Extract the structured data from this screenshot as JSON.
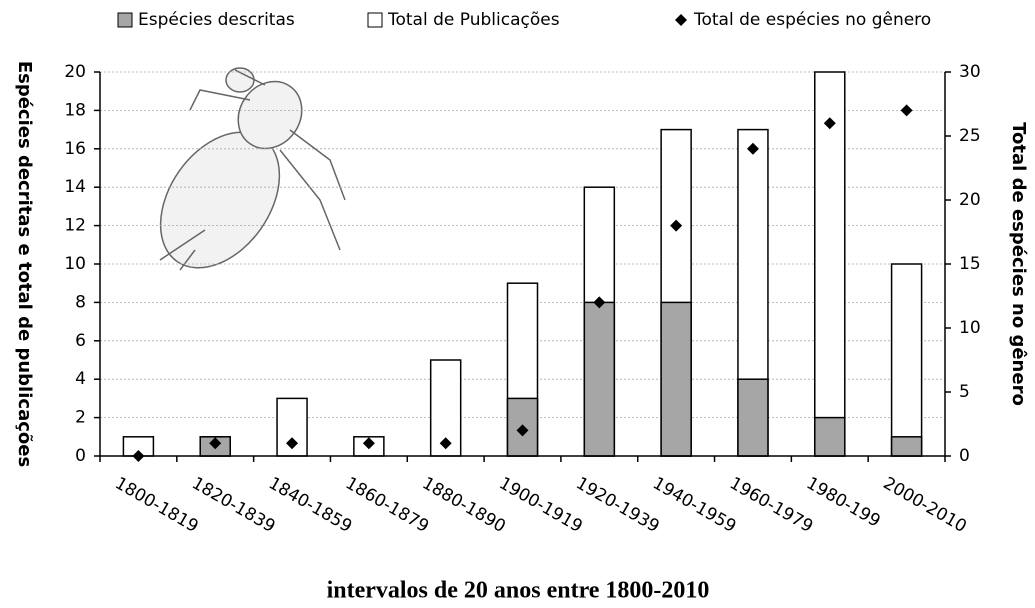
{
  "chart_data": {
    "type": "bar",
    "xlabel": "intervalos de 20 anos entre 1800-2010",
    "ylabel": "Espécies decritas e total de publicações",
    "y2label": "Total de espécies no gênero",
    "categories": [
      "1800-1819",
      "1820-1839",
      "1840-1859",
      "1860-1879",
      "1880-1890",
      "1900-1919",
      "1920-1939",
      "1940-1959",
      "1960-1979",
      "1980-199",
      "2000-2010"
    ],
    "series": [
      {
        "name": "Espécies descritas",
        "type": "bar",
        "color": "#a6a6a6",
        "values": [
          0,
          1,
          0,
          0,
          0,
          3,
          8,
          8,
          4,
          2,
          1
        ]
      },
      {
        "name": "Total de Publicações",
        "type": "bar",
        "color": "#ffffff",
        "values": [
          1,
          1,
          3,
          1,
          5,
          9,
          14,
          17,
          17,
          20,
          10
        ]
      },
      {
        "name": "Total de espécies no gênero",
        "type": "scatter",
        "axis": "y2",
        "color": "#000000",
        "values": [
          0,
          1,
          1,
          1,
          1,
          2,
          12,
          18,
          24,
          26,
          27
        ]
      }
    ],
    "ylim": [
      0,
      20
    ],
    "yticks": [
      0,
      2,
      4,
      6,
      8,
      10,
      12,
      14,
      16,
      18,
      20
    ],
    "y2lim": [
      0,
      30
    ],
    "y2ticks": [
      0,
      5,
      10,
      15,
      20,
      25,
      30
    ],
    "grid": true
  }
}
